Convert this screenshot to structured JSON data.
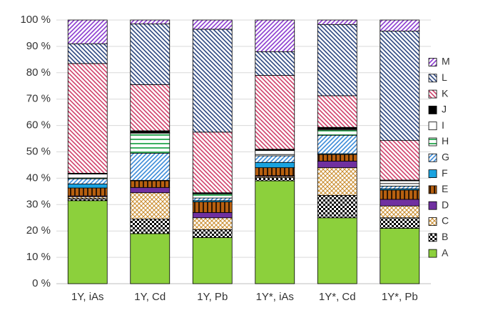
{
  "chart_data": {
    "type": "stacked_bar",
    "categories": [
      "1Y, iAs",
      "1Y, Cd",
      "1Y, Pb",
      "1Y*, iAs",
      "1Y*, Cd",
      "1Y*, Pb"
    ],
    "series": [
      {
        "name": "A",
        "color": "#8cd03c",
        "pattern": "solid",
        "values": [
          31.5,
          19,
          17.5,
          39,
          25,
          21
        ]
      },
      {
        "name": "B",
        "color": "#000000",
        "pattern": "checker",
        "values": [
          0.8,
          5.5,
          3,
          1.2,
          8.5,
          4
        ]
      },
      {
        "name": "C",
        "color": "#c88a2a",
        "pattern": "crosshatch",
        "values": [
          0.7,
          10,
          4.5,
          0.5,
          10.5,
          4.5
        ]
      },
      {
        "name": "D",
        "color": "#7030a0",
        "pattern": "solid",
        "values": [
          0.3,
          2,
          2,
          0.3,
          2.5,
          2.5
        ]
      },
      {
        "name": "E",
        "color": "#b86010",
        "pattern": "vstripe",
        "values": [
          3,
          2.5,
          4,
          3,
          2.5,
          3.5
        ]
      },
      {
        "name": "F",
        "color": "#1aa3e0",
        "pattern": "solid",
        "values": [
          1.5,
          0.2,
          0.5,
          2,
          0.3,
          0.5
        ]
      },
      {
        "name": "G",
        "color": "#3a8ad8",
        "pattern": "diag-up",
        "values": [
          2,
          10.3,
          1,
          2.5,
          7,
          1
        ]
      },
      {
        "name": "H",
        "color": "#3cb060",
        "pattern": "hstripe",
        "values": [
          0.3,
          7.5,
          1.5,
          0.5,
          2,
          1
        ]
      },
      {
        "name": "I",
        "color": "#ffffff",
        "pattern": "solid",
        "values": [
          1.5,
          0.3,
          0.3,
          1.5,
          0.3,
          1
        ]
      },
      {
        "name": "J",
        "color": "#000000",
        "pattern": "solid",
        "values": [
          0.3,
          0.7,
          0.2,
          0.5,
          0.7,
          0.3
        ]
      },
      {
        "name": "K",
        "color": "#d0406a",
        "pattern": "diag-down",
        "values": [
          41.6,
          17.5,
          23,
          28,
          12,
          15
        ]
      },
      {
        "name": "L",
        "color": "#2c4680",
        "pattern": "diag-down",
        "values": [
          7.5,
          23,
          39,
          9,
          27,
          41.5
        ]
      },
      {
        "name": "M",
        "color": "#8a3ad0",
        "pattern": "diag-up",
        "values": [
          9,
          1.5,
          3.5,
          12,
          1.7,
          4.2
        ]
      }
    ],
    "ylim": [
      0,
      100
    ],
    "yticks": [
      {
        "value": 0,
        "label": "0 %"
      },
      {
        "value": 10,
        "label": "10 %"
      },
      {
        "value": 20,
        "label": "20 %"
      },
      {
        "value": 30,
        "label": "30 %"
      },
      {
        "value": 40,
        "label": "40 %"
      },
      {
        "value": 50,
        "label": "50 %"
      },
      {
        "value": 60,
        "label": "60 %"
      },
      {
        "value": 70,
        "label": "70 %"
      },
      {
        "value": 80,
        "label": "80 %"
      },
      {
        "value": 90,
        "label": "90 %"
      },
      {
        "value": 100,
        "label": "100 %"
      }
    ],
    "grid": true,
    "legend": "right"
  }
}
